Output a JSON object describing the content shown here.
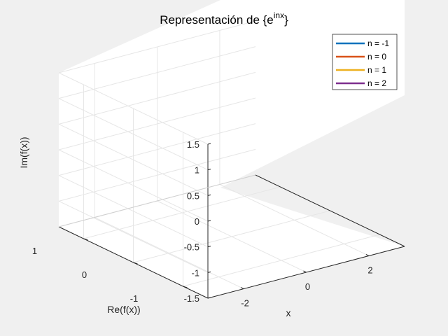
{
  "chart_data": {
    "type": "line",
    "title": "Representación de {e",
    "title_superscript": "inx",
    "title_suffix": "}",
    "xlabel": "x",
    "ylabel": "Re(f(x))",
    "zlabel": "Im(f(x))",
    "xlim": [
      -3.14159,
      3.14159
    ],
    "ylim": [
      -1.5,
      1.5
    ],
    "zlim": [
      -1.5,
      1.5
    ],
    "x_ticks": [
      "-2",
      "0",
      "2"
    ],
    "y_ticks": [
      "-1",
      "0",
      "1"
    ],
    "z_ticks": [
      "-1.5",
      "-1",
      "-0.5",
      "0",
      "0.5",
      "1",
      "1.5"
    ],
    "grid": true,
    "legend_position": "top-right",
    "series": [
      {
        "name": "n = -1",
        "color": "#0072BD",
        "values": []
      },
      {
        "name": "n = 0",
        "color": "#D95319",
        "values": []
      },
      {
        "name": "n = 1",
        "color": "#EDB120",
        "values": []
      },
      {
        "name": "n = 2",
        "color": "#7E2F8E",
        "values": []
      }
    ]
  }
}
